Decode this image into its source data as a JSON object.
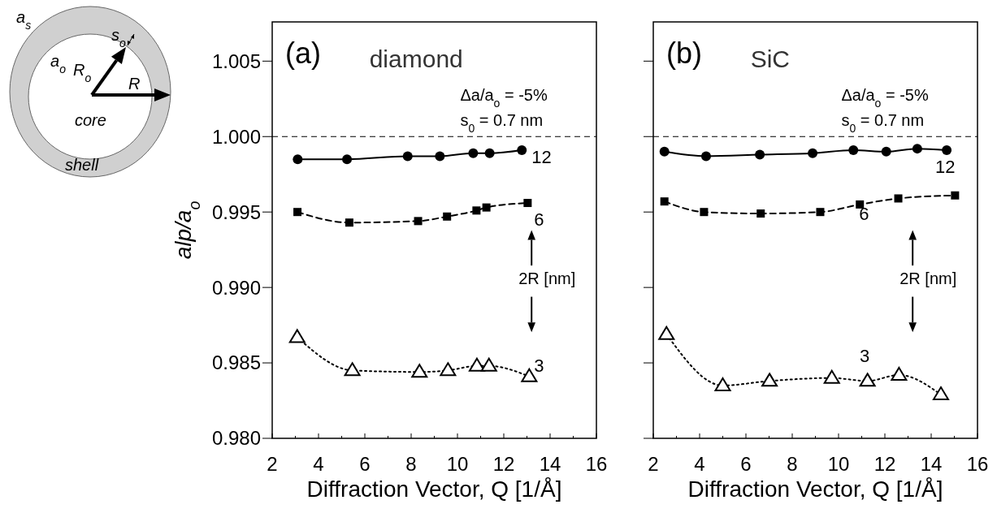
{
  "chart_data": [
    {
      "type": "other",
      "annotations": [
        "a$_{s}$",
        "a$_{o}$",
        "R$_{o}$",
        "R",
        "s$_{o}$",
        "core",
        "shell"
      ]
    },
    {
      "type": "line",
      "title": "diamond",
      "xlabel": "Diffraction Vector, Q   [1/Å]",
      "ylabel": "alp/a$_{o}$",
      "xlim": [
        2,
        16
      ],
      "ylim": [
        0.98,
        1.0076
      ],
      "xticks": [
        2,
        {
          "value": 3,
          "label": null
        },
        4,
        {
          "value": 5,
          "label": null
        },
        6,
        {
          "value": 7,
          "label": null
        },
        8,
        {
          "value": 9,
          "label": null
        },
        10,
        {
          "value": 11,
          "label": null
        },
        12,
        {
          "value": 13,
          "label": null
        },
        14,
        {
          "value": 15,
          "label": null
        },
        16
      ],
      "yticks": [
        {
          "value": 0.98,
          "label": "0.980"
        },
        {
          "value": 0.985,
          "label": "0.985"
        },
        {
          "value": 0.99,
          "label": "0.990"
        },
        {
          "value": 0.995,
          "label": "0.995"
        },
        {
          "value": 1,
          "label": "1.000"
        },
        {
          "value": 1.005,
          "label": "1.005"
        }
      ],
      "ref_lines": [
        {
          "axis": "y",
          "value": 1,
          "line_style": "dashed",
          "color": "#000000"
        }
      ],
      "annotations": [
        "(a)",
        "Δa/a$_{o}$ = -5%",
        "s$_{0}$ = 0.7 nm",
        "2R  [nm]"
      ],
      "series": [
        {
          "name": "12",
          "color": "#000000",
          "marker": "circle",
          "line_style": "solid",
          "x": [
            3.1,
            5.23,
            7.85,
            9.24,
            10.68,
            11.39,
            12.78
          ],
          "values": [
            0.9985,
            0.9985,
            0.9987,
            0.9987,
            0.9989,
            0.9989,
            0.9991
          ]
        },
        {
          "name": "6",
          "color": "#000000",
          "marker": "square",
          "line_style": "dashed",
          "x": [
            3.09,
            5.33,
            8.3,
            9.55,
            10.82,
            11.25,
            13.03
          ],
          "values": [
            0.995,
            0.9943,
            0.9944,
            0.9947,
            0.9951,
            0.9953,
            0.9956
          ]
        },
        {
          "name": "3",
          "color": "#000000",
          "marker": "triangle",
          "line_style": "dotted",
          "x": [
            3.08,
            5.46,
            8.36,
            9.59,
            10.84,
            11.36,
            13.1
          ],
          "values": [
            0.9867,
            0.9845,
            0.9844,
            0.9845,
            0.9848,
            0.9848,
            0.9841
          ]
        }
      ]
    },
    {
      "type": "line",
      "title": "SiC",
      "xlabel": "Diffraction Vector, Q   [1/Å]",
      "xlim": [
        2,
        16
      ],
      "ylim": [
        0.98,
        1.0076
      ],
      "tick_labels": "x",
      "xticks": [
        2,
        {
          "value": 3,
          "label": null
        },
        4,
        {
          "value": 5,
          "label": null
        },
        6,
        {
          "value": 7,
          "label": null
        },
        8,
        {
          "value": 9,
          "label": null
        },
        10,
        {
          "value": 11,
          "label": null
        },
        12,
        {
          "value": 13,
          "label": null
        },
        14,
        {
          "value": 15,
          "label": null
        },
        16
      ],
      "yticks": [
        {
          "value": 0.98,
          "label": null
        },
        {
          "value": 0.985,
          "label": null
        },
        {
          "value": 0.99,
          "label": null
        },
        {
          "value": 0.995,
          "label": null
        },
        {
          "value": 1,
          "label": null
        },
        {
          "value": 1.005,
          "label": null
        }
      ],
      "ref_lines": [
        {
          "axis": "y",
          "value": 1,
          "line_style": "dashed",
          "color": "#000000"
        }
      ],
      "annotations": [
        "(b)",
        "Δa/a$_{o}$ = -5%",
        "s$_{0}$ = 0.7 nm",
        "2R  [nm]"
      ],
      "series": [
        {
          "name": "12",
          "color": "#000000",
          "marker": "circle",
          "line_style": "solid",
          "x": [
            2.48,
            4.28,
            6.6,
            8.88,
            10.64,
            12.06,
            13.4,
            14.67
          ],
          "values": [
            0.999,
            0.9987,
            0.9988,
            0.9989,
            0.9991,
            0.999,
            0.9992,
            0.9991
          ]
        },
        {
          "name": "6",
          "color": "#000000",
          "marker": "square",
          "line_style": "dashed",
          "x": [
            2.48,
            4.19,
            6.64,
            9.21,
            10.92,
            12.58,
            15.03
          ],
          "values": [
            0.9957,
            0.995,
            0.9949,
            0.995,
            0.9955,
            0.9959,
            0.9961
          ]
        },
        {
          "name": "3",
          "color": "#000000",
          "marker": "triangle",
          "line_style": "dotted",
          "x": [
            2.57,
            5.0,
            7.02,
            9.71,
            11.25,
            12.61,
            14.42
          ],
          "values": [
            0.9869,
            0.9835,
            0.9838,
            0.984,
            0.9838,
            0.9842,
            0.9829
          ]
        }
      ]
    }
  ]
}
